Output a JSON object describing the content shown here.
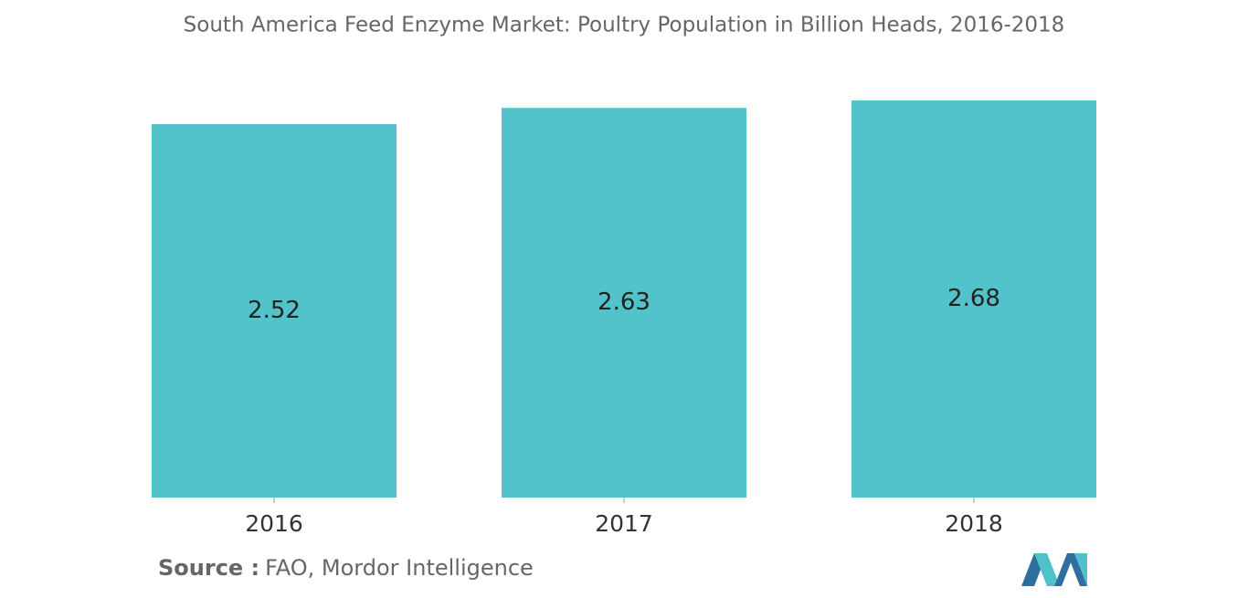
{
  "chart_data": {
    "type": "bar",
    "title": "South America Feed Enzyme Market: Poultry Population in Billion Heads, 2016-2018",
    "categories": [
      "2016",
      "2017",
      "2018"
    ],
    "values": [
      2.52,
      2.63,
      2.68
    ],
    "color": "#52c3ca",
    "source_label": "Source :",
    "source": "FAO, Mordor Intelligence"
  }
}
